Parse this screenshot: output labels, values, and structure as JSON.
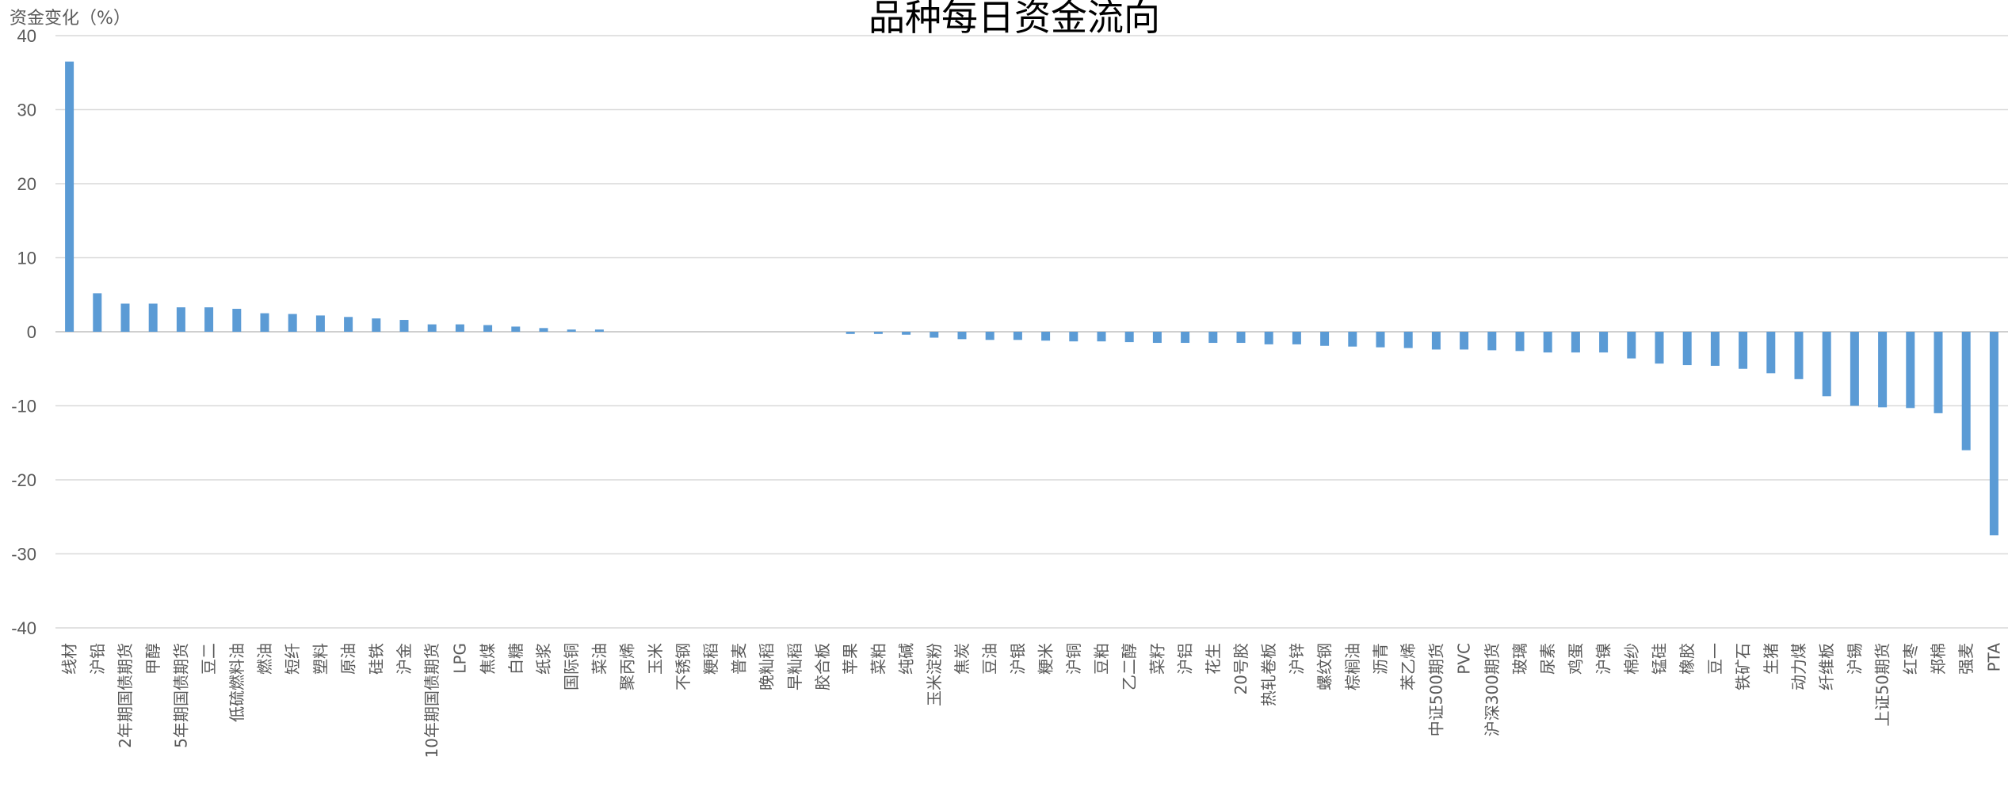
{
  "chart_data": {
    "type": "bar",
    "title": "品种每日资金流向",
    "ylabel": "资金变化（%）",
    "xlabel": "",
    "ylim": [
      -40,
      40
    ],
    "yticks": [
      40,
      30,
      20,
      10,
      0,
      -10,
      -20,
      -30,
      -40
    ],
    "grid": true,
    "color": "#5b9bd5",
    "categories": [
      "线材",
      "沪铅",
      "2年期国债期货",
      "甲醇",
      "5年期国债期货",
      "豆二",
      "低硫燃料油",
      "燃油",
      "短纤",
      "塑料",
      "原油",
      "硅铁",
      "沪金",
      "10年期国债期货",
      "LPG",
      "焦煤",
      "白糖",
      "纸浆",
      "国际铜",
      "菜油",
      "聚丙烯",
      "玉米",
      "不锈钢",
      "粳稻",
      "普麦",
      "晚籼稻",
      "早籼稻",
      "胶合板",
      "苹果",
      "菜粕",
      "纯碱",
      "玉米淀粉",
      "焦炭",
      "豆油",
      "沪银",
      "粳米",
      "沪铜",
      "豆粕",
      "乙二醇",
      "菜籽",
      "沪铝",
      "花生",
      "20号胶",
      "热轧卷板",
      "沪锌",
      "螺纹钢",
      "棕榈油",
      "沥青",
      "苯乙烯",
      "中证500期货",
      "PVC",
      "沪深300期货",
      "玻璃",
      "尿素",
      "鸡蛋",
      "沪镍",
      "棉纱",
      "锰硅",
      "橡胶",
      "豆一",
      "铁矿石",
      "生猪",
      "动力煤",
      "纤维板",
      "沪锡",
      "上证50期货",
      "红枣",
      "郑棉",
      "强麦",
      "PTA"
    ],
    "values": [
      36.5,
      5.2,
      3.8,
      3.8,
      3.3,
      3.3,
      3.1,
      2.5,
      2.4,
      2.2,
      2.0,
      1.8,
      1.6,
      1.0,
      1.0,
      0.9,
      0.7,
      0.5,
      0.3,
      0.3,
      0,
      0,
      0,
      0,
      0,
      0,
      0,
      0,
      -0.3,
      -0.3,
      -0.4,
      -0.8,
      -1.0,
      -1.1,
      -1.1,
      -1.2,
      -1.3,
      -1.3,
      -1.4,
      -1.5,
      -1.5,
      -1.5,
      -1.5,
      -1.7,
      -1.7,
      -1.9,
      -2.0,
      -2.1,
      -2.2,
      -2.4,
      -2.4,
      -2.5,
      -2.6,
      -2.8,
      -2.8,
      -2.8,
      -3.6,
      -4.3,
      -4.5,
      -4.6,
      -5.0,
      -5.6,
      -6.4,
      -8.7,
      -10.0,
      -10.2,
      -10.3,
      -11.0,
      -16.0,
      -27.5
    ]
  }
}
